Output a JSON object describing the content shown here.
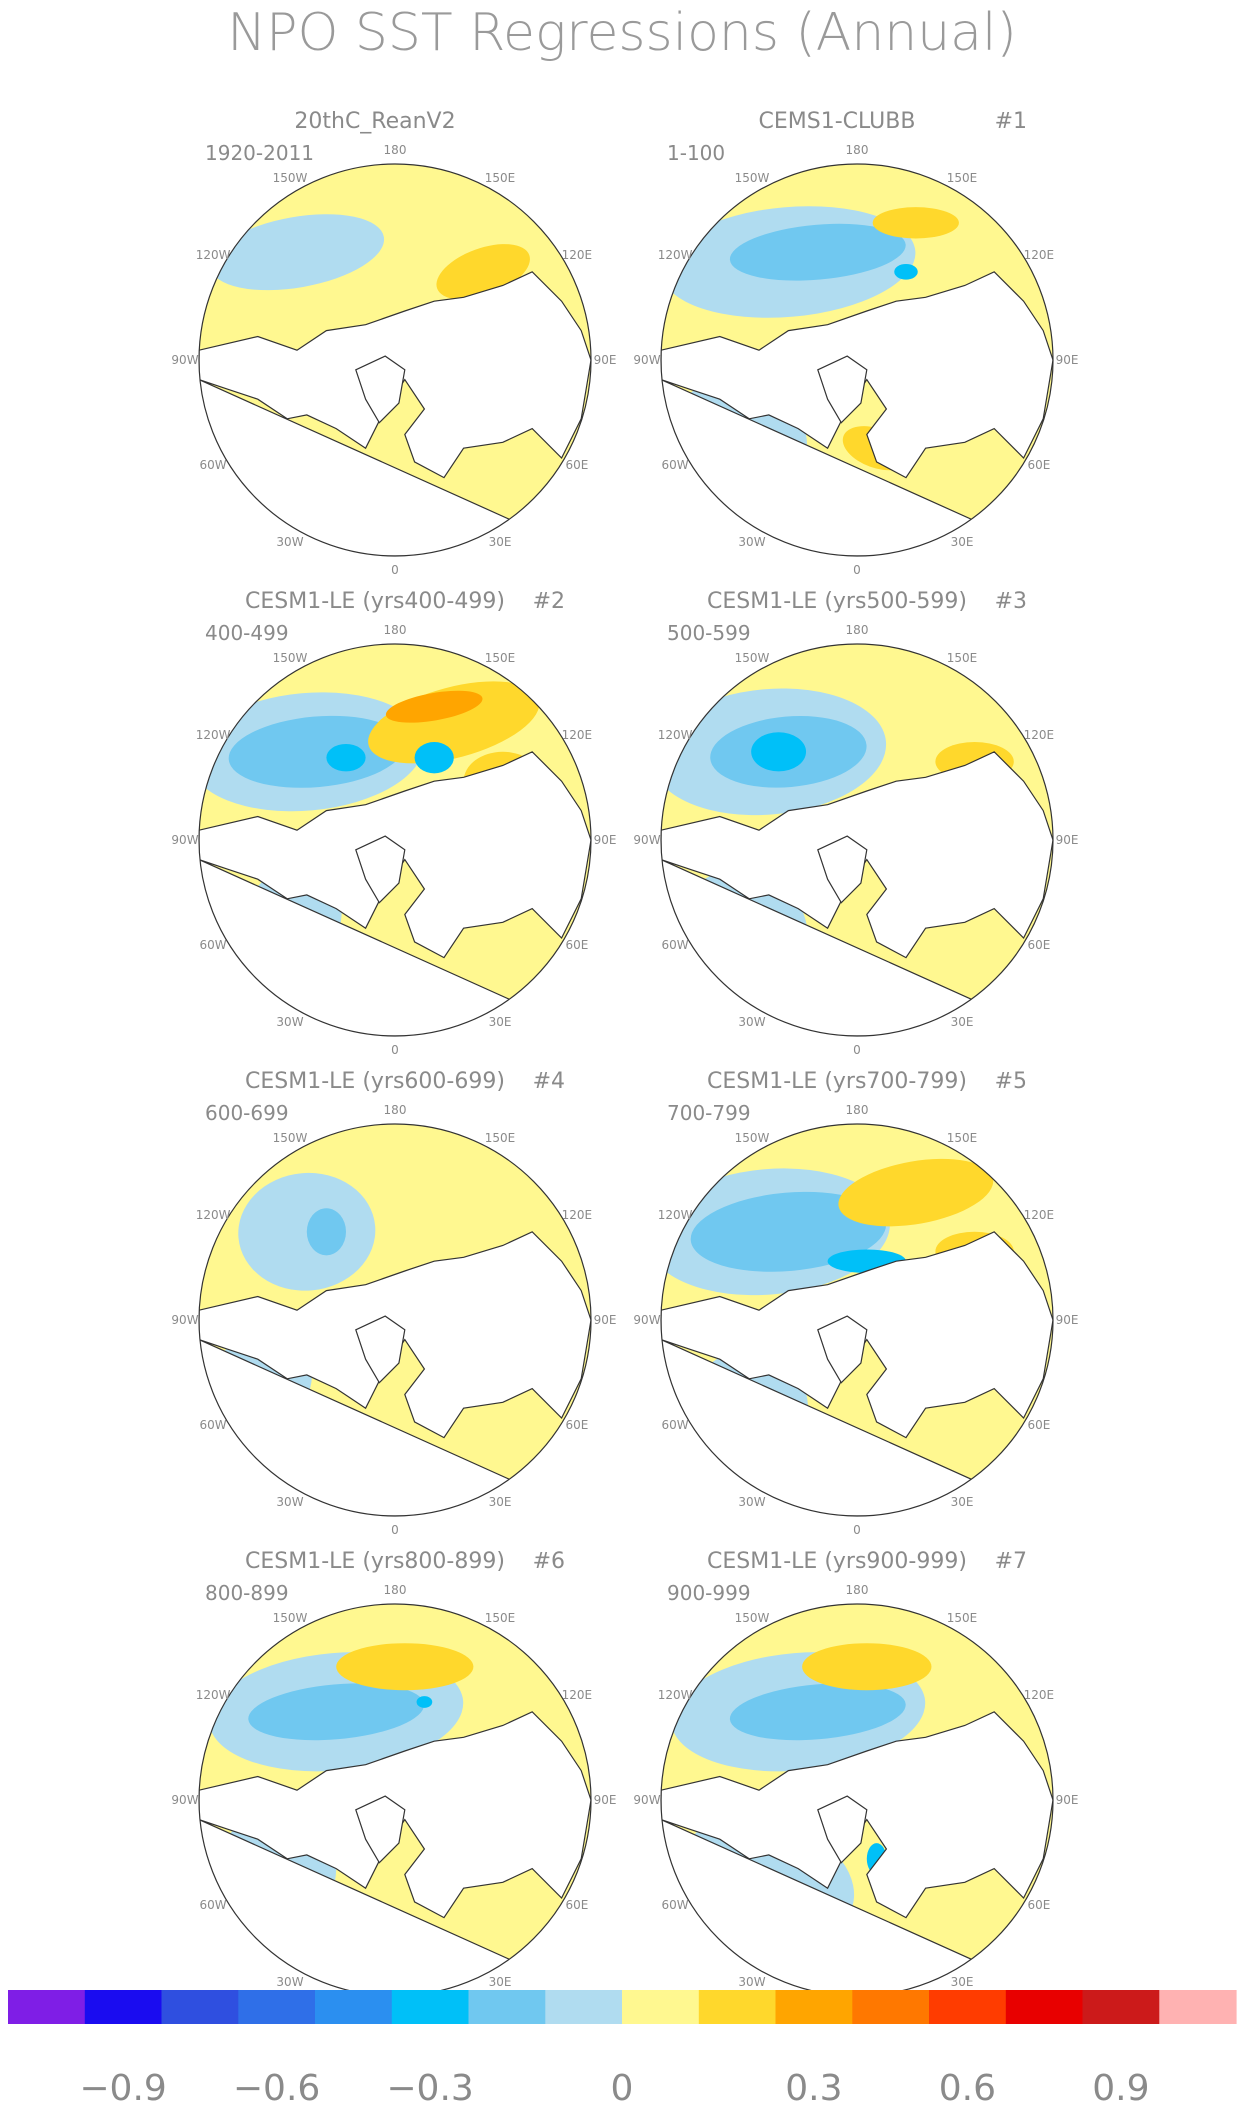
{
  "title": "NPO SST Regressions (Annual)",
  "panels": [
    {
      "title": "20thC_ReanV2",
      "tag": "",
      "years": "1920-2011",
      "pattern": "obs"
    },
    {
      "title": "CEMS1-CLUBB",
      "tag": "#1",
      "years": "1-100",
      "pattern": "clubb"
    },
    {
      "title": "CESM1-LE (yrs400-499)",
      "tag": "#2",
      "years": "400-499",
      "pattern": "strong"
    },
    {
      "title": "CESM1-LE (yrs500-599)",
      "tag": "#3",
      "years": "500-599",
      "pattern": "strong2"
    },
    {
      "title": "CESM1-LE (yrs600-699)",
      "tag": "#4",
      "years": "600-699",
      "pattern": "weak"
    },
    {
      "title": "CESM1-LE (yrs700-799)",
      "tag": "#5",
      "years": "700-799",
      "pattern": "strong3"
    },
    {
      "title": "CESM1-LE (yrs800-899)",
      "tag": "#6",
      "years": "800-899",
      "pattern": "mid"
    },
    {
      "title": "CESM1-LE (yrs900-999)",
      "tag": "#7",
      "years": "900-999",
      "pattern": "mid2"
    }
  ],
  "lon_labels": [
    "180",
    "150E",
    "120E",
    "90E",
    "60E",
    "30E",
    "0",
    "30W",
    "60W",
    "90W",
    "120W",
    "150W"
  ],
  "colorbar": {
    "colors": [
      "#7f1ee6",
      "#1a0cf0",
      "#2f4fe0",
      "#2f6fe8",
      "#2b8ff0",
      "#00c0f8",
      "#70c8f0",
      "#b0dcf0",
      "#fff890",
      "#ffd82c",
      "#ffa500",
      "#ff7800",
      "#ff3c00",
      "#e80000",
      "#cc1a1a",
      "#ffb2b2"
    ],
    "tick_labels": [
      "−0.9",
      "−0.6",
      "−0.3",
      "0",
      "0.3",
      "0.6",
      "0.9"
    ]
  }
}
